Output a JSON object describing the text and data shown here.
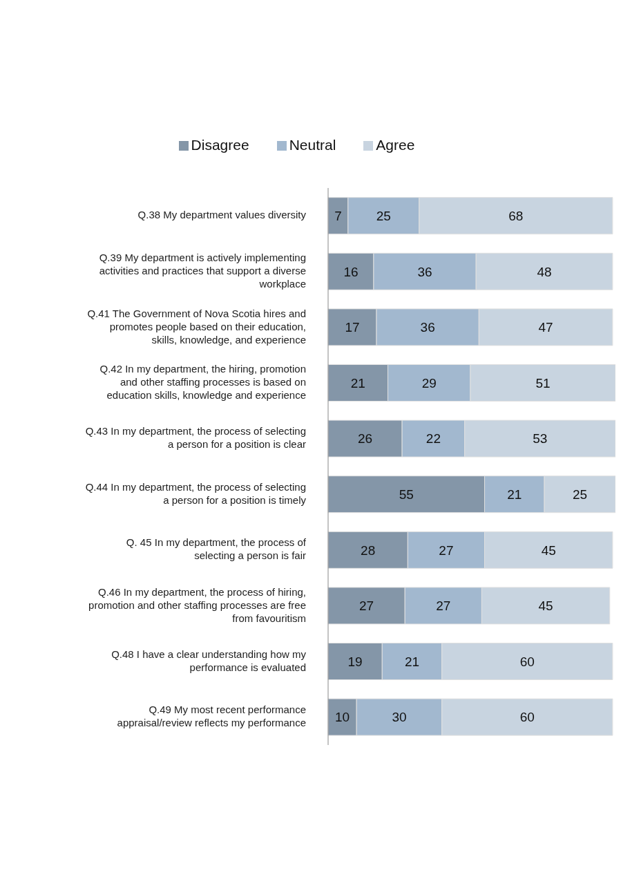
{
  "chart_data": {
    "type": "bar",
    "orientation": "horizontal",
    "stacked": true,
    "data_labels": true,
    "legend": "top",
    "grid": false,
    "categories": [
      "Q.38 My department values diversity",
      "Q.39 My department is actively implementing activities and practices that support a diverse workplace",
      "Q.41 The Government of Nova Scotia hires and promotes people based on their education, skills, knowledge, and experience",
      "Q.42 In my department, the hiring, promotion and other staffing processes is based on education skills, knowledge and experience",
      "Q.43 In my department, the process of selecting a person for a position is clear",
      "Q.44 In my department, the process of selecting a person for a position is timely",
      "Q. 45 In my department, the process of selecting a person is fair",
      "Q.46 In my department, the process of hiring, promotion and other staffing processes are free from favouritism",
      "Q.48 I have a clear understanding how my performance is evaluated",
      "Q.49 My most recent performance appraisal/review reflects my performance"
    ],
    "series": [
      {
        "name": "Disagree",
        "color": "#8496a8",
        "values": [
          7,
          16,
          17,
          21,
          26,
          55,
          28,
          27,
          19,
          10
        ]
      },
      {
        "name": "Neutral",
        "color": "#a2b8cf",
        "values": [
          25,
          36,
          36,
          29,
          22,
          21,
          27,
          27,
          21,
          30
        ]
      },
      {
        "name": "Agree",
        "color": "#c8d4e0",
        "values": [
          68,
          48,
          47,
          51,
          53,
          25,
          45,
          45,
          60,
          60
        ]
      }
    ]
  }
}
